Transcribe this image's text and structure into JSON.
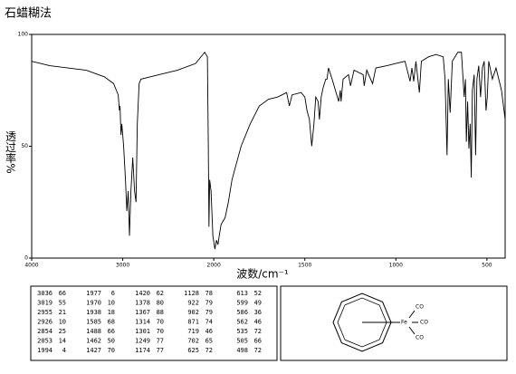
{
  "chart_data": {
    "type": "line",
    "title": "石蜡糊法",
    "x_label": "波数/cm⁻¹",
    "y_label": "透过率%",
    "x": [
      4000,
      3800,
      3600,
      3400,
      3200,
      3100,
      3050,
      3036,
      3030,
      3019,
      3010,
      2990,
      2970,
      2955,
      2940,
      2926,
      2910,
      2890,
      2870,
      2854,
      2840,
      2820,
      2800,
      2700,
      2600,
      2400,
      2200,
      2100,
      2070,
      2060,
      2053,
      2045,
      2030,
      2010,
      1994,
      1985,
      1977,
      1970,
      1960,
      1938,
      1920,
      1900,
      1850,
      1800,
      1750,
      1700,
      1650,
      1600,
      1585,
      1570,
      1520,
      1500,
      1488,
      1475,
      1462,
      1450,
      1440,
      1427,
      1420,
      1410,
      1400,
      1385,
      1378,
      1370,
      1350,
      1314,
      1305,
      1301,
      1290,
      1260,
      1249,
      1230,
      1180,
      1174,
      1160,
      1128,
      1110,
      1050,
      1000,
      950,
      922,
      912,
      902,
      890,
      871,
      860,
      820,
      780,
      740,
      730,
      719,
      712,
      702,
      690,
      660,
      640,
      625,
      618,
      613,
      606,
      599,
      592,
      586,
      580,
      570,
      562,
      555,
      545,
      535,
      525,
      515,
      505,
      498,
      490,
      470,
      450,
      420,
      400
    ],
    "values": [
      88,
      86,
      85,
      84,
      81,
      78,
      73,
      66,
      68,
      55,
      60,
      50,
      35,
      21,
      30,
      10,
      30,
      45,
      30,
      25,
      60,
      78,
      80,
      81,
      82,
      84,
      87,
      92,
      90,
      50,
      14,
      35,
      30,
      10,
      4,
      8,
      6,
      10,
      15,
      18,
      25,
      35,
      50,
      60,
      68,
      71,
      72,
      74,
      68,
      73,
      74,
      72,
      66,
      62,
      50,
      60,
      72,
      70,
      62,
      72,
      76,
      80,
      80,
      85,
      80,
      70,
      75,
      70,
      80,
      82,
      77,
      84,
      82,
      77,
      84,
      78,
      85,
      86,
      87,
      88,
      79,
      85,
      79,
      88,
      74,
      88,
      90,
      91,
      90,
      80,
      46,
      80,
      65,
      88,
      92,
      92,
      72,
      80,
      52,
      70,
      49,
      60,
      36,
      75,
      82,
      46,
      80,
      86,
      72,
      85,
      88,
      66,
      72,
      88,
      80,
      85,
      75,
      62
    ],
    "color": "#000000",
    "xlim": [
      4000,
      400
    ],
    "xticks": [
      4000,
      3000,
      2000,
      1500,
      1000,
      500
    ],
    "ylim": [
      0,
      100
    ],
    "yticks": [
      0,
      50,
      100
    ]
  },
  "peak_table": {
    "rows": [
      [
        3036,
        66
      ],
      [
        3019,
        55
      ],
      [
        2955,
        21
      ],
      [
        2926,
        10
      ],
      [
        2854,
        25
      ],
      [
        2053,
        14
      ],
      [
        1994,
        4
      ],
      [
        1977,
        6
      ],
      [
        1970,
        10
      ],
      [
        1938,
        18
      ],
      [
        1585,
        68
      ],
      [
        1488,
        66
      ],
      [
        1462,
        50
      ],
      [
        1427,
        70
      ],
      [
        1420,
        62
      ],
      [
        1378,
        80
      ],
      [
        1367,
        88
      ],
      [
        1314,
        70
      ],
      [
        1301,
        70
      ],
      [
        1249,
        77
      ],
      [
        1174,
        77
      ],
      [
        1128,
        78
      ],
      [
        922,
        79
      ],
      [
        902,
        79
      ],
      [
        871,
        74
      ],
      [
        719,
        46
      ],
      [
        702,
        65
      ],
      [
        625,
        72
      ],
      [
        613,
        52
      ],
      [
        599,
        49
      ],
      [
        586,
        36
      ],
      [
        562,
        46
      ],
      [
        535,
        72
      ],
      [
        505,
        66
      ],
      [
        498,
        72
      ]
    ]
  },
  "structure": {
    "labels": [
      "Fe",
      "CO",
      "CO",
      "CO"
    ]
  }
}
